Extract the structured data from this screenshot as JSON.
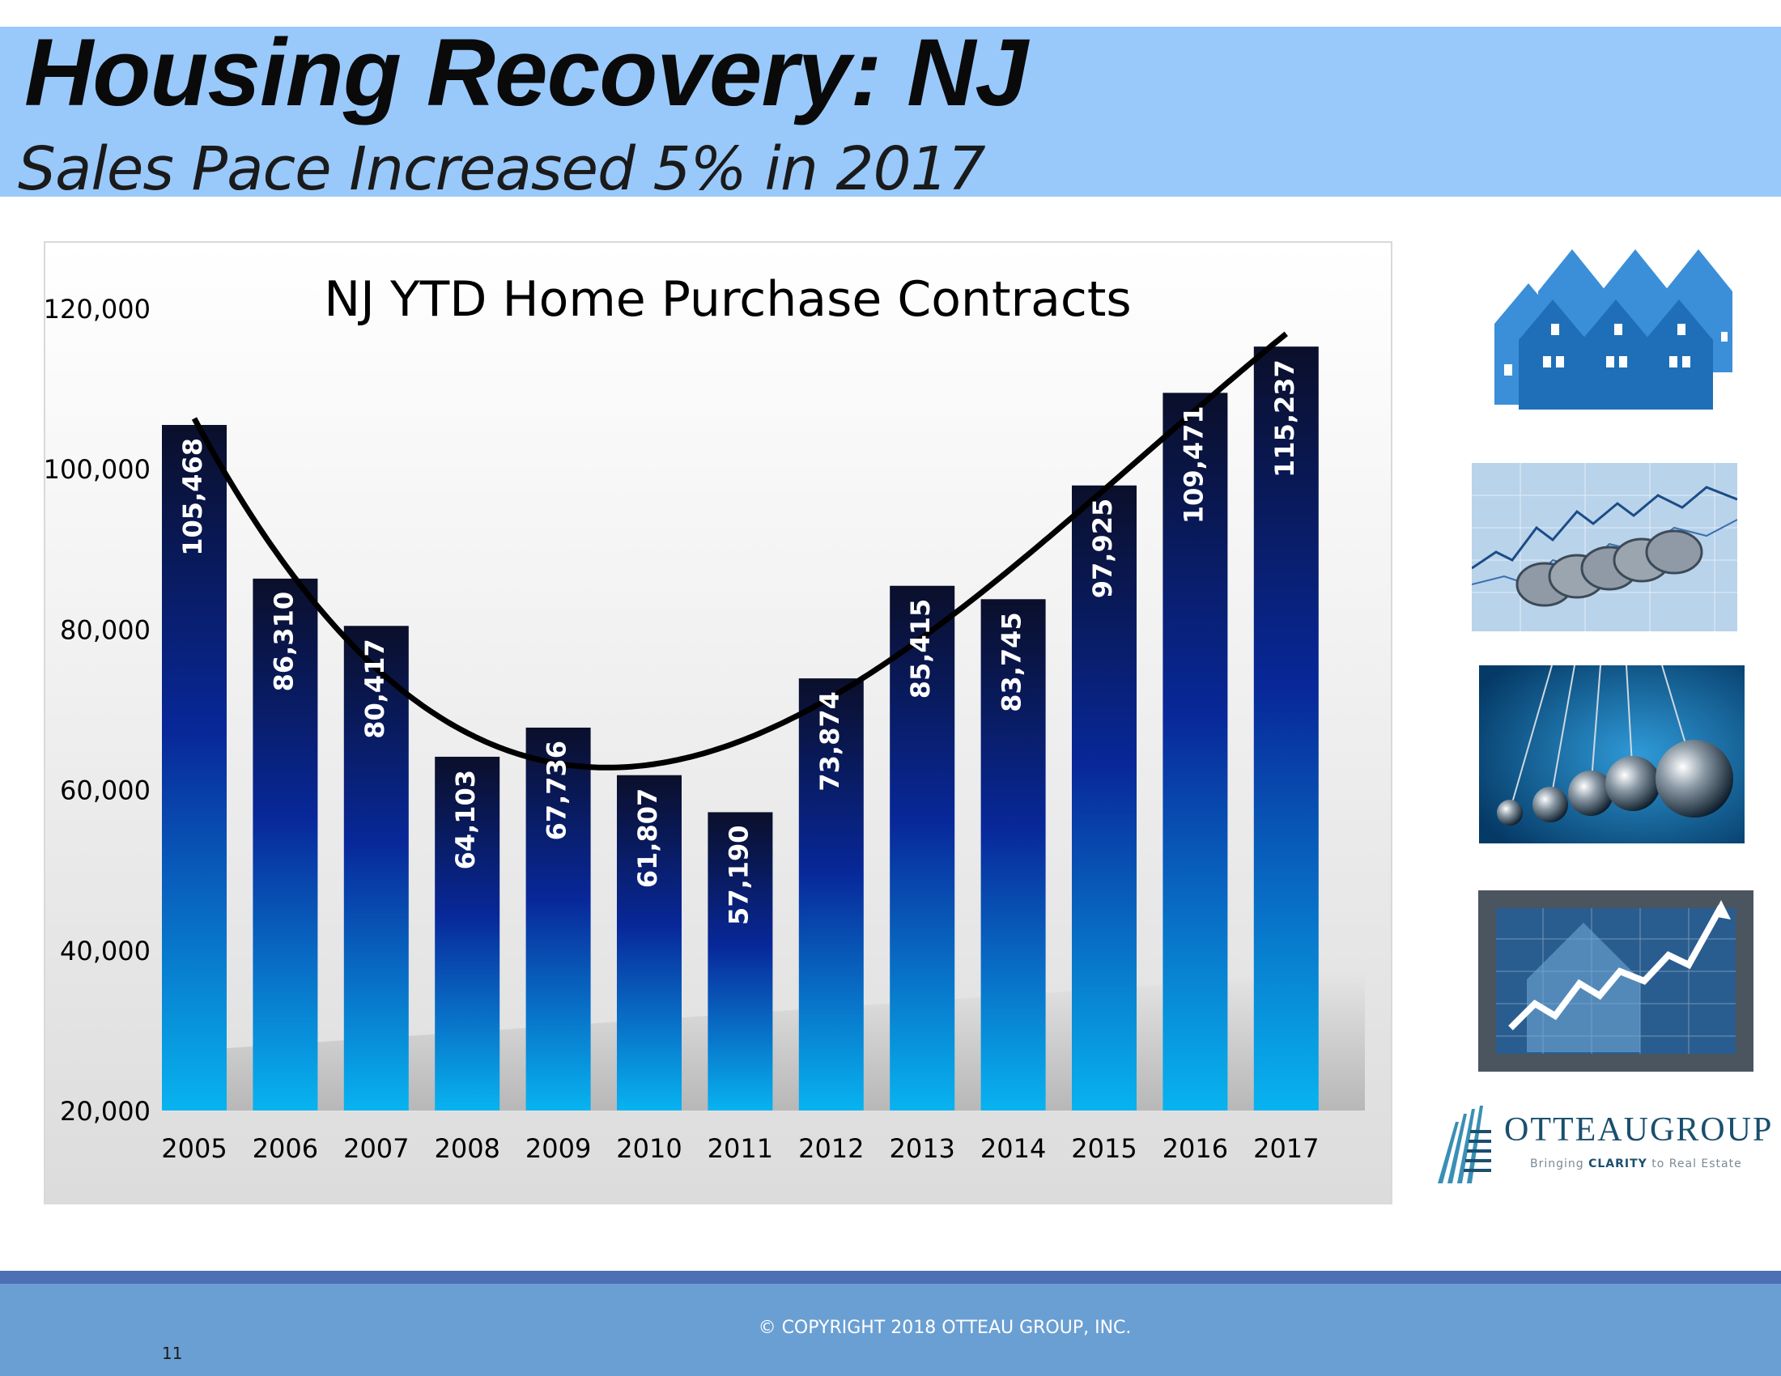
{
  "slide": {
    "title": "Housing Recovery:  NJ",
    "subtitle": "Sales Pace Increased 5% in 2017",
    "copyright": "© COPYRIGHT 2018 OTTEAU GROUP, INC.",
    "page_number": "11"
  },
  "logo": {
    "name": "OTTEAUGROUP",
    "tagline_pre": "Bringing ",
    "tagline_bold": "CLARITY",
    "tagline_post": " to Real Estate"
  },
  "images": [
    {
      "name": "houses-icon"
    },
    {
      "name": "coins-chart-photo"
    },
    {
      "name": "newtons-cradle-photo"
    },
    {
      "name": "house-growth-chart-photo"
    }
  ],
  "colors": {
    "banner": "#99c9fb",
    "bar_top": "#0a0f2a",
    "bar_mid": "#08289a",
    "bar_bottom": "#08b3f0",
    "trend_line": "#000000",
    "footer": "#6a9fd3",
    "footer_stripe": "#4d6fb3"
  },
  "chart_data": {
    "type": "bar",
    "title": "NJ YTD Home Purchase Contracts",
    "xlabel": "",
    "ylabel": "",
    "categories": [
      "2005",
      "2006",
      "2007",
      "2008",
      "2009",
      "2010",
      "2011",
      "2012",
      "2013",
      "2014",
      "2015",
      "2016",
      "2017"
    ],
    "values": [
      105468,
      86310,
      80417,
      64103,
      67736,
      61807,
      57190,
      73874,
      85415,
      83745,
      97925,
      109471,
      115237
    ],
    "data_labels": [
      "105,468",
      "86,310",
      "80,417",
      "64,103",
      "67,736",
      "61,807",
      "57,190",
      "73,874",
      "85,415",
      "83,745",
      "97,925",
      "109,471",
      "115,237"
    ],
    "ylim": [
      20000,
      120000
    ],
    "yticks": [
      20000,
      40000,
      60000,
      80000,
      100000,
      120000
    ],
    "ytick_labels": [
      "20,000",
      "40,000",
      "60,000",
      "80,000",
      "100,000",
      "120,000"
    ],
    "trend": "polynomial",
    "grid": false,
    "legend": "none"
  }
}
